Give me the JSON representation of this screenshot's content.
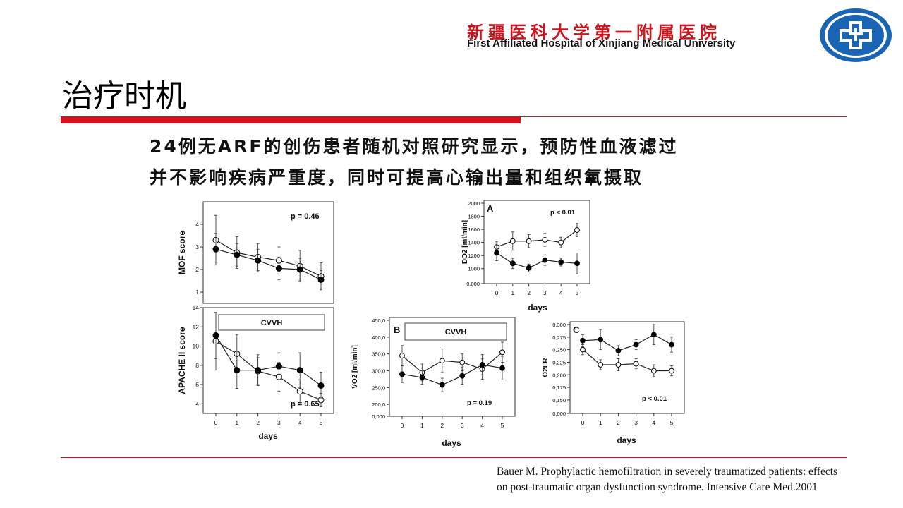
{
  "header": {
    "hospital_cn": "新疆医科大学第一附属医院",
    "hospital_en": "First Affiliated Hospital of Xinjiang Medical University",
    "logo_icon": "hospital-cross-logo-icon",
    "accent": "#c8171e",
    "logo_blue": "#1a64b4"
  },
  "slide": {
    "title": "治疗时机",
    "line1": "24例无ARF的创伤患者随机对照研究显示，预防性血液滤过",
    "line2": "并不影响疾病严重度，同时可提高心输出量和组织氧摄取"
  },
  "citation": {
    "line1": "Bauer M. Prophylactic hemofiltration in severely traumatized patients: effects",
    "line2": "on post-traumatic organ dysfunction syndrome. Intensive Care Med.2001"
  },
  "chart_data": [
    {
      "id": "mof",
      "type": "line",
      "title": "",
      "xlabel": "",
      "ylabel": "MOF score",
      "pvalue": "p = 0.46",
      "x": [
        0,
        1,
        2,
        3,
        4,
        5
      ],
      "ylim": [
        0.5,
        5
      ],
      "yticks": [
        "1",
        "2",
        "3",
        "4"
      ],
      "series": [
        {
          "marker": "open",
          "values": [
            3.3,
            2.75,
            2.55,
            2.4,
            2.15,
            1.7
          ],
          "err": [
            1.1,
            0.7,
            0.6,
            0.6,
            0.7,
            0.6
          ]
        },
        {
          "marker": "filled",
          "values": [
            2.9,
            2.65,
            2.4,
            2.05,
            2.0,
            1.55
          ],
          "err": [
            0.7,
            0.5,
            0.5,
            0.5,
            0.5,
            0.4
          ]
        }
      ]
    },
    {
      "id": "apache",
      "type": "line",
      "title": "",
      "xlabel": "days",
      "ylabel": "APACHE II score",
      "box_label": "CVVH",
      "pvalue": "p = 0.65",
      "x": [
        0,
        1,
        2,
        3,
        4,
        5
      ],
      "ylim": [
        3,
        14
      ],
      "yticks": [
        "4",
        "6",
        "8",
        "10",
        "12",
        "14"
      ],
      "xticks": [
        "0",
        "1",
        "2",
        "3",
        "4",
        "5"
      ],
      "series": [
        {
          "marker": "open",
          "values": [
            10.5,
            9.2,
            7.4,
            6.8,
            5.3,
            4.4
          ],
          "err": [
            3.0,
            2.0,
            1.4,
            1.5,
            1.2,
            0.7
          ]
        },
        {
          "marker": "filled",
          "values": [
            11.1,
            7.5,
            7.5,
            7.9,
            7.5,
            5.9
          ],
          "err": [
            2.4,
            1.9,
            1.6,
            1.4,
            1.8,
            1.4
          ]
        }
      ]
    },
    {
      "id": "do2",
      "type": "line",
      "title": "",
      "panel": "A",
      "xlabel": "days",
      "ylabel": "DO2 [ml/min]",
      "pvalue": "p < 0.01",
      "x": [
        0,
        1,
        2,
        3,
        4,
        5
      ],
      "ylim": [
        0,
        2000
      ],
      "yticks": [
        "0,000",
        "1000",
        "1200",
        "1400",
        "1600",
        "1800",
        "2000"
      ],
      "xticks": [
        "0",
        "1",
        "2",
        "3",
        "4",
        "5"
      ],
      "series": [
        {
          "marker": "open",
          "values": [
            1330,
            1420,
            1420,
            1440,
            1400,
            1590
          ],
          "err": [
            80,
            140,
            100,
            100,
            80,
            100
          ]
        },
        {
          "marker": "filled",
          "values": [
            1240,
            1080,
            1010,
            1130,
            1100,
            1080
          ],
          "err": [
            120,
            80,
            60,
            80,
            60,
            160
          ]
        }
      ]
    },
    {
      "id": "vo2",
      "type": "line",
      "title": "",
      "panel": "B",
      "xlabel": "days",
      "ylabel": "VO2 [ml/min]",
      "box_label": "CVVH",
      "pvalue": "p = 0.19",
      "x": [
        0,
        1,
        2,
        3,
        4,
        5
      ],
      "ylim": [
        0,
        450
      ],
      "yticks": [
        "0,000",
        "200,0",
        "250,0",
        "300,0",
        "350,0",
        "400,0",
        "450,0"
      ],
      "xticks": [
        "0",
        "1",
        "2",
        "3",
        "4",
        "5"
      ],
      "series": [
        {
          "marker": "open",
          "values": [
            345,
            295,
            330,
            325,
            305,
            355
          ],
          "err": [
            30,
            25,
            35,
            25,
            30,
            30
          ]
        },
        {
          "marker": "filled",
          "values": [
            290,
            280,
            258,
            285,
            318,
            308
          ],
          "err": [
            25,
            20,
            20,
            25,
            30,
            35
          ]
        }
      ]
    },
    {
      "id": "o2er",
      "type": "line",
      "title": "",
      "panel": "C",
      "xlabel": "days",
      "ylabel": "O2ER",
      "pvalue": "p < 0.01",
      "x": [
        0,
        1,
        2,
        3,
        4,
        5
      ],
      "ylim": [
        0,
        0.3
      ],
      "yticks": [
        "0,000",
        "0,150",
        "0,175",
        "0,200",
        "0,225",
        "0,250",
        "0,275",
        "0,300"
      ],
      "xticks": [
        "0",
        "1",
        "2",
        "3",
        "4",
        "5"
      ],
      "series": [
        {
          "marker": "open",
          "values": [
            0.25,
            0.22,
            0.22,
            0.222,
            0.208,
            0.208
          ],
          "err": [
            0.01,
            0.01,
            0.012,
            0.01,
            0.012,
            0.01
          ]
        },
        {
          "marker": "filled",
          "values": [
            0.268,
            0.27,
            0.248,
            0.26,
            0.28,
            0.26
          ],
          "err": [
            0.012,
            0.02,
            0.01,
            0.01,
            0.02,
            0.015
          ]
        }
      ]
    }
  ]
}
